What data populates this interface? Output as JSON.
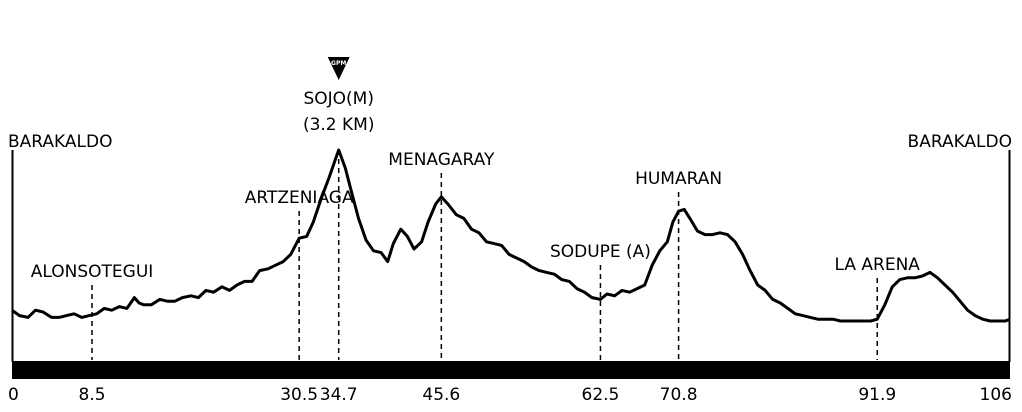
{
  "chart_data": {
    "type": "line",
    "title": "",
    "xlabel": "",
    "ylabel": "",
    "xlim": [
      0,
      106
    ],
    "grid": false,
    "legend": "none",
    "colors": {
      "line": "#000000",
      "baseline_bar": "#000000",
      "marker_lines": "#000000",
      "background": "#ffffff"
    },
    "x_ticks": [
      "0",
      "8.5",
      "30.5",
      "34.7",
      "45.6",
      "62.5",
      "70.8",
      "91.9",
      "106"
    ],
    "gpm_badge": {
      "text": "GPM",
      "x": 34.7
    },
    "series": [
      {
        "values": [
          [
            0,
            0.11
          ],
          [
            0.8,
            0.08
          ],
          [
            1.7,
            0.07
          ],
          [
            2.5,
            0.11
          ],
          [
            3.3,
            0.1
          ],
          [
            4.2,
            0.07
          ],
          [
            5,
            0.07
          ],
          [
            5.8,
            0.08
          ],
          [
            6.6,
            0.09
          ],
          [
            7.4,
            0.07
          ],
          [
            8.2,
            0.08
          ],
          [
            9,
            0.09
          ],
          [
            9.8,
            0.12
          ],
          [
            10.6,
            0.11
          ],
          [
            11.4,
            0.13
          ],
          [
            12.2,
            0.12
          ],
          [
            13,
            0.18
          ],
          [
            13.5,
            0.15
          ],
          [
            14,
            0.14
          ],
          [
            14.8,
            0.14
          ],
          [
            15.7,
            0.17
          ],
          [
            16.5,
            0.16
          ],
          [
            17.3,
            0.16
          ],
          [
            18.1,
            0.18
          ],
          [
            19,
            0.19
          ],
          [
            19.8,
            0.18
          ],
          [
            20.6,
            0.22
          ],
          [
            21.4,
            0.21
          ],
          [
            22.3,
            0.24
          ],
          [
            23.1,
            0.22
          ],
          [
            23.9,
            0.25
          ],
          [
            24.7,
            0.27
          ],
          [
            25.5,
            0.27
          ],
          [
            26.3,
            0.33
          ],
          [
            27.2,
            0.34
          ],
          [
            28,
            0.36
          ],
          [
            28.8,
            0.38
          ],
          [
            29.6,
            0.42
          ],
          [
            30.5,
            0.51
          ],
          [
            31.3,
            0.52
          ],
          [
            32,
            0.6
          ],
          [
            32.9,
            0.74
          ],
          [
            33.7,
            0.85
          ],
          [
            34.3,
            0.94
          ],
          [
            34.7,
            1.0
          ],
          [
            35.4,
            0.9
          ],
          [
            36,
            0.78
          ],
          [
            36.8,
            0.62
          ],
          [
            37.6,
            0.5
          ],
          [
            38.4,
            0.44
          ],
          [
            39.2,
            0.43
          ],
          [
            39.9,
            0.38
          ],
          [
            40.5,
            0.48
          ],
          [
            41.3,
            0.56
          ],
          [
            42,
            0.52
          ],
          [
            42.7,
            0.45
          ],
          [
            43.5,
            0.49
          ],
          [
            44.2,
            0.6
          ],
          [
            45,
            0.7
          ],
          [
            45.6,
            0.74
          ],
          [
            46.3,
            0.7
          ],
          [
            47.2,
            0.64
          ],
          [
            48,
            0.62
          ],
          [
            48.8,
            0.56
          ],
          [
            49.6,
            0.54
          ],
          [
            50.4,
            0.49
          ],
          [
            51.2,
            0.48
          ],
          [
            52,
            0.47
          ],
          [
            52.8,
            0.42
          ],
          [
            53.6,
            0.4
          ],
          [
            54.4,
            0.38
          ],
          [
            55.2,
            0.35
          ],
          [
            56,
            0.33
          ],
          [
            56.8,
            0.32
          ],
          [
            57.6,
            0.31
          ],
          [
            58.4,
            0.28
          ],
          [
            59.2,
            0.27
          ],
          [
            60,
            0.23
          ],
          [
            60.8,
            0.21
          ],
          [
            61.6,
            0.18
          ],
          [
            62.5,
            0.17
          ],
          [
            63.2,
            0.2
          ],
          [
            64,
            0.19
          ],
          [
            64.8,
            0.22
          ],
          [
            65.6,
            0.21
          ],
          [
            66.4,
            0.23
          ],
          [
            67.2,
            0.25
          ],
          [
            68,
            0.36
          ],
          [
            68.8,
            0.44
          ],
          [
            69.6,
            0.49
          ],
          [
            70.2,
            0.6
          ],
          [
            70.8,
            0.66
          ],
          [
            71.4,
            0.67
          ],
          [
            72,
            0.62
          ],
          [
            72.8,
            0.55
          ],
          [
            73.6,
            0.53
          ],
          [
            74.4,
            0.53
          ],
          [
            75.2,
            0.54
          ],
          [
            76,
            0.53
          ],
          [
            76.8,
            0.49
          ],
          [
            77.6,
            0.42
          ],
          [
            78.4,
            0.33
          ],
          [
            79.2,
            0.25
          ],
          [
            80,
            0.22
          ],
          [
            80.8,
            0.17
          ],
          [
            81.6,
            0.15
          ],
          [
            82.4,
            0.12
          ],
          [
            83.2,
            0.09
          ],
          [
            84,
            0.08
          ],
          [
            84.8,
            0.07
          ],
          [
            85.6,
            0.06
          ],
          [
            86.4,
            0.06
          ],
          [
            87.2,
            0.06
          ],
          [
            88,
            0.05
          ],
          [
            88.8,
            0.05
          ],
          [
            89.6,
            0.05
          ],
          [
            90.4,
            0.05
          ],
          [
            91.2,
            0.05
          ],
          [
            91.9,
            0.06
          ],
          [
            92.7,
            0.14
          ],
          [
            93.5,
            0.24
          ],
          [
            94.3,
            0.28
          ],
          [
            95.1,
            0.29
          ],
          [
            95.9,
            0.29
          ],
          [
            96.7,
            0.3
          ],
          [
            97.5,
            0.32
          ],
          [
            98.3,
            0.29
          ],
          [
            99.1,
            0.25
          ],
          [
            99.9,
            0.21
          ],
          [
            100.7,
            0.16
          ],
          [
            101.5,
            0.11
          ],
          [
            102.3,
            0.08
          ],
          [
            103.1,
            0.06
          ],
          [
            103.9,
            0.05
          ],
          [
            104.7,
            0.05
          ],
          [
            105.5,
            0.05
          ],
          [
            106,
            0.06
          ]
        ]
      }
    ],
    "annotations": [
      {
        "x": 0,
        "text": "BARAKALDO",
        "anchor": "start"
      },
      {
        "x": 106,
        "text": "BARAKALDO",
        "anchor": "end"
      },
      {
        "x": 8.5,
        "text": "ALONSOTEGUI",
        "anchor": "middle"
      },
      {
        "x": 30.5,
        "text": "ARTZENIAGA",
        "anchor": "middle"
      },
      {
        "x": 34.7,
        "text": "SOJO(M)",
        "text2": "(3.2 KM)",
        "anchor": "middle"
      },
      {
        "x": 45.6,
        "text": "MENAGARAY",
        "anchor": "middle"
      },
      {
        "x": 62.5,
        "text": "SODUPE (A)",
        "anchor": "middle"
      },
      {
        "x": 70.8,
        "text": "HUMARAN",
        "anchor": "middle"
      },
      {
        "x": 91.9,
        "text": "LA ARENA",
        "anchor": "middle"
      }
    ]
  }
}
